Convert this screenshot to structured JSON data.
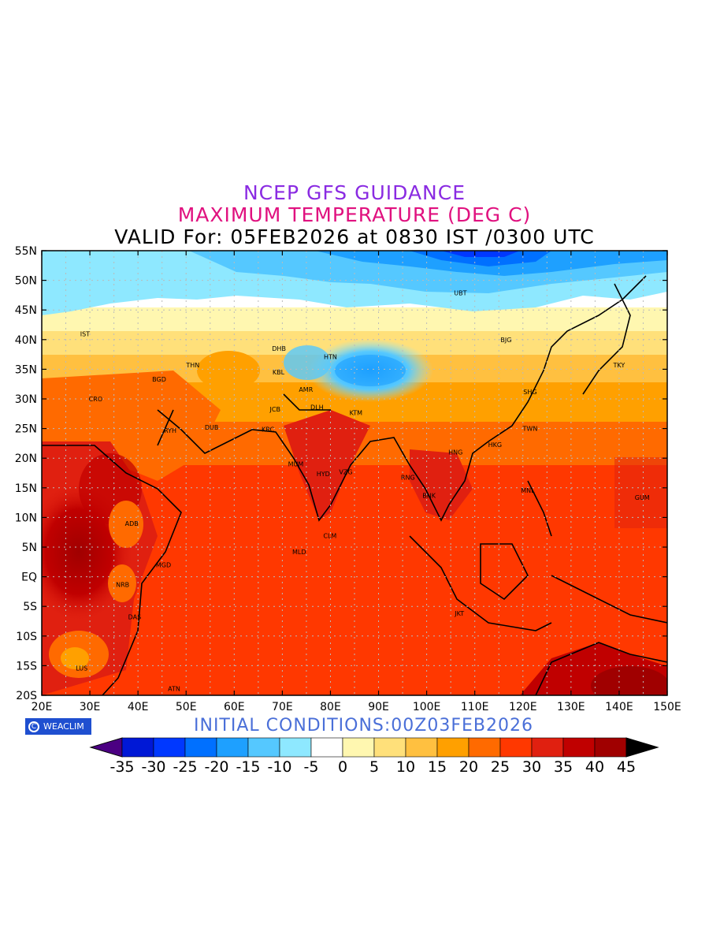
{
  "titles": {
    "line1": "NCEP GFS GUIDANCE",
    "line2": "MAXIMUM TEMPERATURE (DEG C)",
    "line3": "VALID For: 05FEB2026 at 0830 IST /0300 UTC"
  },
  "initial_conditions": "INITIAL CONDITIONS:00Z03FEB2026",
  "badge": {
    "label": "WEACLIM",
    "icon": "circle-c-icon"
  },
  "axes": {
    "lon_ticks": [
      "20E",
      "30E",
      "40E",
      "50E",
      "60E",
      "70E",
      "80E",
      "90E",
      "100E",
      "110E",
      "120E",
      "130E",
      "140E",
      "150E"
    ],
    "lat_ticks": [
      "55N",
      "50N",
      "45N",
      "40N",
      "35N",
      "30N",
      "25N",
      "20N",
      "15N",
      "10N",
      "5N",
      "EQ",
      "5S",
      "10S",
      "15S",
      "20S"
    ],
    "lon_range": [
      20,
      150
    ],
    "lat_range": [
      -20,
      55
    ]
  },
  "colorbar": {
    "labels": [
      "-35",
      "-30",
      "-25",
      "-20",
      "-15",
      "-10",
      "-5",
      "0",
      "5",
      "10",
      "15",
      "20",
      "25",
      "30",
      "35",
      "40",
      "45"
    ],
    "colors": [
      "#4b0082",
      "#0018d6",
      "#0038ff",
      "#0070ff",
      "#1ea0ff",
      "#55c8ff",
      "#8ee8ff",
      "#ffffff",
      "#fff7b0",
      "#ffe07a",
      "#ffc040",
      "#ffa000",
      "#ff6a00",
      "#ff3800",
      "#e02010",
      "#c00000",
      "#a00000",
      "#000000"
    ]
  },
  "stations": [
    {
      "code": "UBT",
      "lon": 107,
      "lat": 47.9
    },
    {
      "code": "BJG",
      "lon": 116.5,
      "lat": 40
    },
    {
      "code": "TKY",
      "lon": 140,
      "lat": 35.7
    },
    {
      "code": "SHG",
      "lon": 121.5,
      "lat": 31.2
    },
    {
      "code": "TWN",
      "lon": 121.5,
      "lat": 25
    },
    {
      "code": "HKG",
      "lon": 114.2,
      "lat": 22.3
    },
    {
      "code": "HNG",
      "lon": 106,
      "lat": 21
    },
    {
      "code": "DHB",
      "lon": 69.3,
      "lat": 38.5
    },
    {
      "code": "HTN",
      "lon": 80,
      "lat": 37.1
    },
    {
      "code": "KBL",
      "lon": 69.2,
      "lat": 34.5
    },
    {
      "code": "THN",
      "lon": 51.4,
      "lat": 35.7
    },
    {
      "code": "IST",
      "lon": 29,
      "lat": 41
    },
    {
      "code": "BGD",
      "lon": 44.4,
      "lat": 33.3
    },
    {
      "code": "CRO",
      "lon": 31.2,
      "lat": 30
    },
    {
      "code": "RYH",
      "lon": 46.7,
      "lat": 24.7
    },
    {
      "code": "DUB",
      "lon": 55.3,
      "lat": 25.2
    },
    {
      "code": "JCB",
      "lon": 68.5,
      "lat": 28.3
    },
    {
      "code": "KRC",
      "lon": 67,
      "lat": 24.9
    },
    {
      "code": "DLH",
      "lon": 77.2,
      "lat": 28.6
    },
    {
      "code": "AMR",
      "lon": 74.9,
      "lat": 31.6
    },
    {
      "code": "KTM",
      "lon": 85.3,
      "lat": 27.7
    },
    {
      "code": "MUM",
      "lon": 72.8,
      "lat": 19
    },
    {
      "code": "HYD",
      "lon": 78.5,
      "lat": 17.4
    },
    {
      "code": "VZG",
      "lon": 83.2,
      "lat": 17.7
    },
    {
      "code": "RNG",
      "lon": 96.1,
      "lat": 16.8
    },
    {
      "code": "BNK",
      "lon": 100.5,
      "lat": 13.7
    },
    {
      "code": "MNL",
      "lon": 121,
      "lat": 14.6
    },
    {
      "code": "GUM",
      "lon": 144.8,
      "lat": 13.4
    },
    {
      "code": "CLM",
      "lon": 79.9,
      "lat": 6.9
    },
    {
      "code": "MLD",
      "lon": 73.5,
      "lat": 4.2
    },
    {
      "code": "ADB",
      "lon": 38.7,
      "lat": 9
    },
    {
      "code": "MGD",
      "lon": 45.3,
      "lat": 2
    },
    {
      "code": "NRB",
      "lon": 36.8,
      "lat": -1.3
    },
    {
      "code": "DAS",
      "lon": 39.3,
      "lat": -6.8
    },
    {
      "code": "JKT",
      "lon": 106.8,
      "lat": -6.2
    },
    {
      "code": "LUS",
      "lon": 28.3,
      "lat": -15.4
    },
    {
      "code": "ATN",
      "lon": 47.5,
      "lat": -18.9
    }
  ]
}
